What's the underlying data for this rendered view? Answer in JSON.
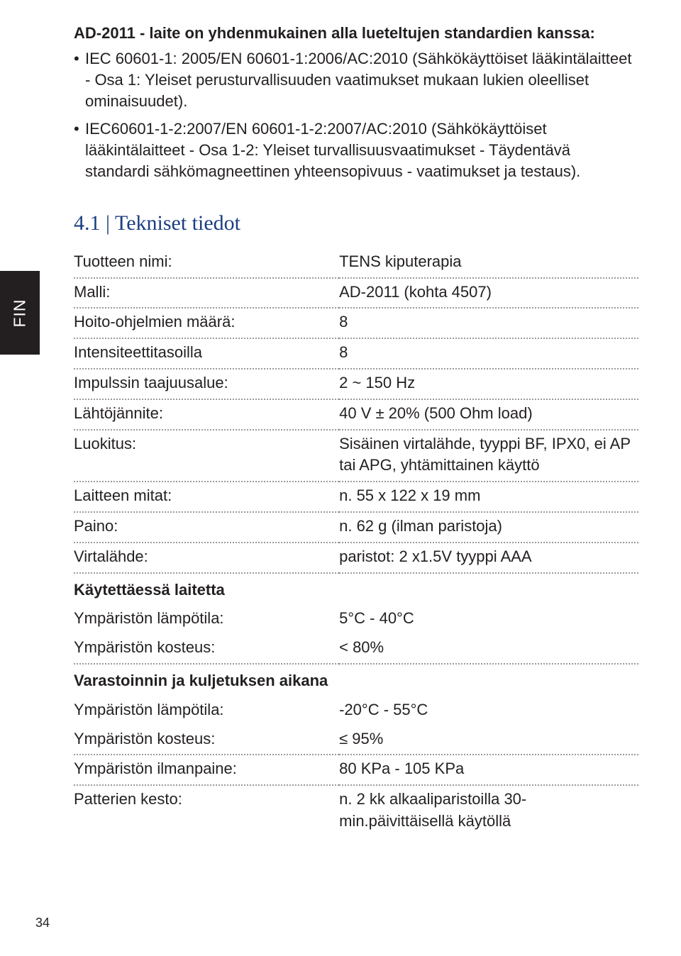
{
  "colors": {
    "text": "#231f20",
    "heading": "#1b3e82",
    "tab_bg": "#231f20",
    "tab_text": "#ffffff",
    "dotted_border": "#9a9a9a",
    "page_bg": "#ffffff"
  },
  "intro": {
    "heading": "AD-2011 - laite on yhdenmukainen alla lueteltujen standardien kanssa:",
    "bullets": [
      "IEC 60601-1: 2005/EN 60601-1:2006/AC:2010\n(Sähkökäyttöiset lääkintälaitteet - Osa 1: Yleiset perusturvallisuuden vaatimukset mukaan lukien oleelliset ominaisuudet).",
      "IEC60601-1-2:2007/EN 60601-1-2:2007/AC:2010\n(Sähkökäyttöiset lääkintälaitteet - Osa 1-2: Yleiset turvallisuusvaatimukset - Täydentävä standardi sähkömagneettinen yhteensopivuus - vaatimukset ja testaus)."
    ]
  },
  "tab_label": "FIN",
  "section_title": "4.1 | Tekniset tiedot",
  "specs": [
    {
      "label": "Tuotteen nimi:",
      "value": "TENS kiputerapia",
      "dotted": true
    },
    {
      "label": "Malli:",
      "value": "AD-2011 (kohta 4507)",
      "dotted": true
    },
    {
      "label": "Hoito-ohjelmien määrä:",
      "value": "8",
      "dotted": true
    },
    {
      "label": "Intensiteettitasoilla",
      "value": "8",
      "dotted": true
    },
    {
      "label": "Impulssin taajuusalue:",
      "value": "2 ~ 150 Hz",
      "dotted": true
    },
    {
      "label": "Lähtöjännite:",
      "value": "40 V ± 20% (500 Ohm load)",
      "dotted": true
    },
    {
      "label": "Luokitus:",
      "value": "Sisäinen virtalähde, tyyppi BF, IPX0, ei AP tai APG, yhtämittainen käyttö",
      "dotted": true
    },
    {
      "label": "Laitteen mitat:",
      "value": "n. 55 x 122 x 19 mm",
      "dotted": true
    },
    {
      "label": "Paino:",
      "value": "n. 62 g (ilman paristoja)",
      "dotted": true
    },
    {
      "label": "Virtalähde:",
      "value": "paristot: 2 x1.5V tyyppi AAA",
      "dotted": true
    },
    {
      "label": "Käytettäessä laitetta",
      "value": "",
      "dotted": false,
      "subheader": true
    },
    {
      "label": "Ympäristön lämpötila:",
      "value": "5°C - 40°C",
      "dotted": false
    },
    {
      "label": "Ympäristön kosteus:",
      "value": "< 80%",
      "dotted": true
    },
    {
      "label": "Varastoinnin ja kuljetuksen aikana",
      "value": "",
      "dotted": false,
      "subheader": true
    },
    {
      "label": "Ympäristön lämpötila:",
      "value": "-20°C - 55°C",
      "dotted": false
    },
    {
      "label": "Ympäristön kosteus:",
      "value": "≤ 95%",
      "dotted": true
    },
    {
      "label": "Ympäristön ilmanpaine:",
      "value": "80 KPa - 105 KPa",
      "dotted": true
    },
    {
      "label": "Patterien kesto:",
      "value": "n. 2 kk alkaaliparistoilla 30-min.päivittäisellä käytöllä",
      "dotted": false
    }
  ],
  "page_number": "34"
}
